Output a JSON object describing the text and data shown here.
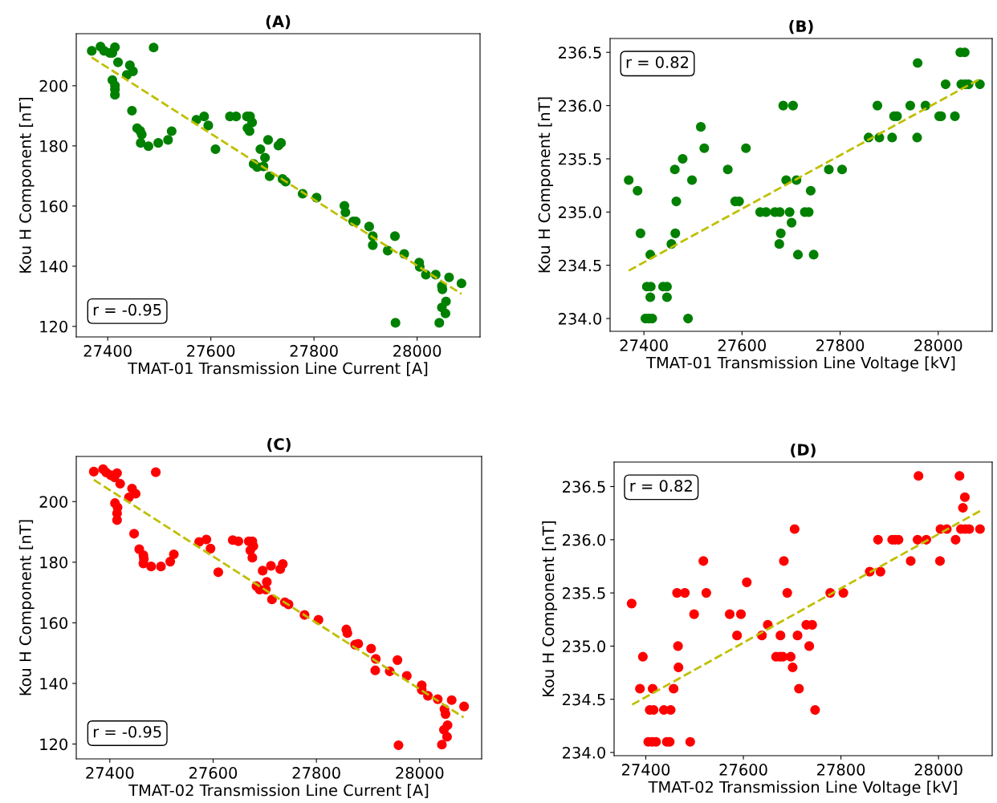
{
  "chart_data": [
    {
      "type": "scatter",
      "title": "(A)",
      "xlabel": "TMAT-01 Transmission Line Current [A]",
      "ylabel": "Kou H Component [nT]",
      "xlim": [
        27339,
        28122
      ],
      "ylim": [
        116.5,
        217.3
      ],
      "xticks": [
        27400,
        27600,
        27800,
        28000
      ],
      "yticks": [
        120,
        140,
        160,
        180,
        200
      ],
      "grid": false,
      "annotations": [
        "r = -0.95"
      ],
      "series": [
        {
          "color": "#008000",
          "marker": "circle",
          "x": [
            27369,
            27386,
            27393,
            27404,
            27409,
            27414,
            27420,
            27489,
            27443,
            27449,
            27437,
            27409,
            27414,
            27414,
            27414,
            27447,
            27457,
            27463,
            27466,
            27464,
            27479,
            27498,
            27517,
            27524,
            27572,
            27587,
            27595,
            27609,
            27637,
            27649,
            27670,
            27676,
            27680,
            27671,
            27675,
            27711,
            27731,
            27736,
            27696,
            27705,
            27683,
            27690,
            27702,
            27714,
            27739,
            27745,
            27778,
            27805,
            27859,
            27861,
            27876,
            27881,
            27907,
            27914,
            27914,
            27943,
            27957,
            27975,
            28004,
            28005,
            28017,
            28036,
            28062,
            28086,
            28048,
            28049,
            28056,
            28048,
            28055,
            27958,
            28043
          ],
          "values": [
            211.6,
            213,
            211.6,
            210.9,
            210.9,
            212.8,
            207.8,
            212.7,
            206.8,
            204.8,
            203.6,
            201.9,
            200.1,
            198.8,
            197,
            191.7,
            185.9,
            185,
            183.8,
            181,
            179.9,
            181,
            182,
            184.9,
            188.7,
            189.8,
            186.8,
            178.9,
            189.8,
            189.8,
            189.8,
            189.8,
            187.8,
            185.9,
            184.9,
            182,
            180.1,
            181,
            178.9,
            176.1,
            174,
            173,
            173.2,
            169.9,
            169,
            168.1,
            164.1,
            162.8,
            160.1,
            157.9,
            154.9,
            154.9,
            153.2,
            150,
            147,
            145.2,
            150,
            144.1,
            141.2,
            139.8,
            137.2,
            137.2,
            136.3,
            134.3,
            133.4,
            132.3,
            128.3,
            126.3,
            124.3,
            121.2,
            121.2
          ]
        },
        {
          "type": "line",
          "color": "#bfbf00",
          "marker": "none",
          "line_style": "dashed",
          "x": [
            27369,
            28086
          ],
          "values": [
            209.4,
            130.8
          ]
        }
      ]
    },
    {
      "type": "scatter",
      "title": "(B)",
      "xlabel": "TMAT-01 Transmission Line Voltage [kV]",
      "ylabel": "Kou H Component [nT]",
      "xlim": [
        27331,
        28110
      ],
      "ylim": [
        233.88,
        236.63
      ],
      "xticks": [
        27400,
        27600,
        27800,
        28000
      ],
      "yticks": [
        {
          "value": 234,
          "label": "234.0"
        },
        {
          "value": 234.5,
          "label": "234.5"
        },
        {
          "value": 235,
          "label": "235.0"
        },
        {
          "value": 235.5,
          "label": "235.5"
        },
        {
          "value": 236,
          "label": "236.0"
        },
        {
          "value": 236.5,
          "label": "236.5"
        }
      ],
      "grid": false,
      "annotations": [
        "r = 0.82"
      ],
      "series": [
        {
          "color": "#008000",
          "marker": "circle",
          "x": [
            27369,
            27387,
            27393,
            27413,
            27406,
            27414,
            27413,
            27403,
            27410,
            27417,
            27439,
            27447,
            27447,
            27456,
            27464,
            27466,
            27463,
            27479,
            27498,
            27490,
            27516,
            27523,
            27571,
            27586,
            27594,
            27608,
            27637,
            27649,
            27667,
            27677,
            27697,
            27701,
            27679,
            27676,
            27684,
            27704,
            27690,
            27711,
            27728,
            27736,
            27740,
            27714,
            27746,
            27777,
            27804,
            27858,
            27880,
            27906,
            27957,
            27876,
            27910,
            27916,
            27943,
            27974,
            27958,
            28002,
            28006,
            28034,
            28015,
            28045,
            28054,
            28047,
            28055,
            28062,
            28085
          ],
          "values": [
            235.3,
            235.2,
            234.8,
            234.6,
            234.3,
            234.3,
            234.2,
            234.0,
            234.0,
            234.0,
            234.3,
            234.3,
            234.2,
            234.7,
            234.8,
            235.1,
            235.4,
            235.5,
            235.3,
            234.0,
            235.8,
            235.6,
            235.4,
            235.1,
            235.1,
            235.6,
            235.0,
            235.0,
            235.0,
            235.0,
            235.0,
            234.9,
            234.8,
            234.7,
            236.0,
            236.0,
            235.3,
            235.3,
            235.0,
            235.0,
            235.2,
            234.6,
            234.6,
            235.4,
            235.4,
            235.7,
            235.7,
            235.7,
            235.7,
            236.0,
            235.9,
            235.9,
            236.0,
            236.0,
            236.4,
            235.9,
            235.9,
            235.9,
            236.2,
            236.5,
            236.5,
            236.2,
            236.2,
            236.2,
            236.2
          ]
        },
        {
          "type": "line",
          "color": "#bfbf00",
          "marker": "none",
          "line_style": "dashed",
          "x": [
            27369,
            28085
          ],
          "values": [
            234.45,
            236.25
          ]
        }
      ]
    },
    {
      "type": "scatter",
      "title": "(C)",
      "xlabel": "TMAT-02 Transmission Line Current [A]",
      "ylabel": "Kou H Component [nT]",
      "xlim": [
        27335,
        28120
      ],
      "ylim": [
        115.1,
        214.9
      ],
      "xticks": [
        27400,
        27600,
        27800,
        28000
      ],
      "yticks": [
        120,
        140,
        160,
        180,
        200
      ],
      "grid": false,
      "annotations": [
        "r = -0.95"
      ],
      "series": [
        {
          "color": "#ff0000",
          "marker": "circle",
          "x": [
            27369,
            27387,
            27393,
            27402,
            27409,
            27414,
            27420,
            27489,
            27443,
            27450,
            27437,
            27410,
            27415,
            27414,
            27414,
            27447,
            27457,
            27465,
            27466,
            27465,
            27480,
            27499,
            27517,
            27524,
            27573,
            27587,
            27595,
            27610,
            27638,
            27649,
            27669,
            27676,
            27678,
            27672,
            27676,
            27712,
            27730,
            27735,
            27696,
            27704,
            27684,
            27690,
            27702,
            27714,
            27739,
            27746,
            27777,
            27804,
            27858,
            27860,
            27875,
            27881,
            27906,
            27915,
            27914,
            27942,
            27957,
            27975,
            28004,
            28004,
            28016,
            28035,
            28062,
            28086,
            28048,
            28050,
            28054,
            28047,
            28053,
            27959,
            28043
          ],
          "values": [
            209.9,
            210.7,
            209.6,
            208.7,
            208.0,
            209.4,
            205.9,
            209.7,
            204.3,
            202.6,
            201.4,
            199.5,
            198.1,
            196.1,
            193.9,
            189.4,
            184.3,
            182.3,
            181.1,
            179.6,
            178.6,
            178.6,
            180.2,
            182.6,
            186.7,
            187.5,
            184.5,
            176.7,
            187.3,
            186.9,
            186.9,
            186.9,
            185.3,
            183.9,
            181.5,
            178.8,
            177.7,
            179.4,
            177.2,
            173.5,
            172.1,
            171.0,
            171.0,
            167.7,
            166.8,
            166.1,
            162.6,
            161.0,
            157.8,
            156.6,
            152.8,
            153.1,
            151.5,
            148.1,
            144.3,
            144.0,
            147.7,
            142.5,
            139.4,
            137.9,
            135.9,
            134.8,
            134.5,
            132.4,
            131.5,
            129.9,
            126.2,
            124.7,
            122.4,
            119.6,
            119.8
          ]
        },
        {
          "type": "line",
          "color": "#bfbf00",
          "marker": "none",
          "line_style": "dashed",
          "x": [
            27369,
            28085
          ],
          "values": [
            207.2,
            128.8
          ]
        }
      ]
    },
    {
      "type": "scatter",
      "title": "(D)",
      "xlabel": "TMAT-02 Transmission Line Voltage [kV]",
      "ylabel": "Kou H Component [nT]",
      "xlim": [
        27335,
        28110
      ],
      "ylim": [
        233.97,
        236.73
      ],
      "xticks": [
        27400,
        27600,
        27800,
        28000
      ],
      "yticks": [
        {
          "value": 234,
          "label": "234.0"
        },
        {
          "value": 234.5,
          "label": "234.5"
        },
        {
          "value": 235,
          "label": "235.0"
        },
        {
          "value": 235.5,
          "label": "235.5"
        },
        {
          "value": 236,
          "label": "236.0"
        },
        {
          "value": 236.5,
          "label": "236.5"
        }
      ],
      "grid": false,
      "annotations": [
        "r = 0.82"
      ],
      "series": [
        {
          "color": "#ff0000",
          "marker": "circle",
          "x": [
            27371,
            27388,
            27394,
            27414,
            27408,
            27416,
            27405,
            27413,
            27421,
            27437,
            27451,
            27443,
            27449,
            27457,
            27467,
            27466,
            27464,
            27480,
            27499,
            27491,
            27518,
            27524,
            27572,
            27595,
            27587,
            27607,
            27638,
            27650,
            27667,
            27675,
            27681,
            27676,
            27683,
            27690,
            27697,
            27701,
            27705,
            27711,
            27714,
            27729,
            27741,
            27735,
            27747,
            27778,
            27805,
            27859,
            27881,
            27876,
            27905,
            27911,
            27918,
            27943,
            27957,
            27975,
            27959,
            28003,
            28004,
            28017,
            28035,
            28043,
            28054,
            28050,
            28046,
            28055,
            28063,
            28085
          ],
          "values": [
            235.4,
            234.6,
            234.9,
            234.6,
            234.4,
            234.4,
            234.1,
            234.1,
            234.1,
            234.4,
            234.4,
            234.1,
            234.1,
            234.6,
            234.8,
            235.0,
            235.5,
            235.5,
            235.3,
            234.1,
            235.8,
            235.5,
            235.3,
            235.3,
            235.1,
            235.6,
            235.1,
            235.2,
            234.9,
            234.9,
            234.9,
            235.1,
            235.8,
            235.5,
            234.9,
            234.8,
            236.1,
            235.1,
            234.6,
            235.2,
            235.2,
            235.0,
            234.4,
            235.5,
            235.5,
            235.7,
            235.7,
            236.0,
            236.0,
            236.0,
            236.0,
            235.8,
            236.0,
            236.0,
            236.6,
            235.8,
            236.1,
            236.1,
            236.0,
            236.6,
            236.4,
            236.3,
            236.1,
            236.1,
            236.1,
            236.1
          ]
        },
        {
          "type": "line",
          "color": "#bfbf00",
          "marker": "none",
          "line_style": "dashed",
          "x": [
            27372,
            28085
          ],
          "values": [
            234.45,
            236.27
          ]
        }
      ]
    }
  ]
}
